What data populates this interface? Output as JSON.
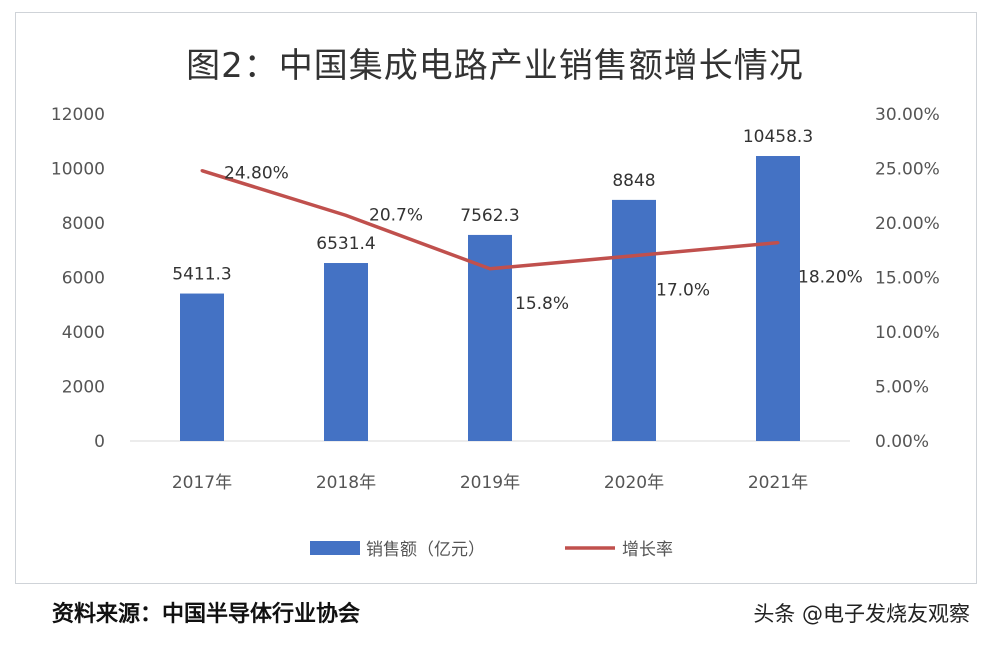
{
  "chart_data": {
    "type": "bar+line",
    "title": "图2：中国集成电路产业销售额增长情况",
    "categories": [
      "2017年",
      "2018年",
      "2019年",
      "2020年",
      "2021年"
    ],
    "series": [
      {
        "name": "销售额（亿元）",
        "type": "bar",
        "axis": "left",
        "color": "#4472c4",
        "values": [
          5411.3,
          6531.4,
          7562.3,
          8848,
          10458.3
        ],
        "labels": [
          "5411.3",
          "6531.4",
          "7562.3",
          "8848",
          "10458.3"
        ]
      },
      {
        "name": "增长率",
        "type": "line",
        "axis": "right",
        "color": "#c0504d",
        "values": [
          24.8,
          20.7,
          15.8,
          17.0,
          18.2
        ],
        "labels": [
          "24.80%",
          "20.7%",
          "15.8%",
          "17.0%",
          "18.20%"
        ]
      }
    ],
    "y_left": {
      "range": [
        0,
        12000
      ],
      "ticks": [
        "0",
        "2000",
        "4000",
        "6000",
        "8000",
        "10000",
        "12000"
      ]
    },
    "y_right": {
      "range": [
        0,
        30
      ],
      "ticks": [
        "0.00%",
        "5.00%",
        "10.00%",
        "15.00%",
        "20.00%",
        "25.00%",
        "30.00%"
      ]
    },
    "grid": false,
    "legend": "bottom"
  },
  "footer": {
    "source": "资料来源：中国半导体行业协会",
    "watermark": "头条 @电子发烧友观察"
  }
}
